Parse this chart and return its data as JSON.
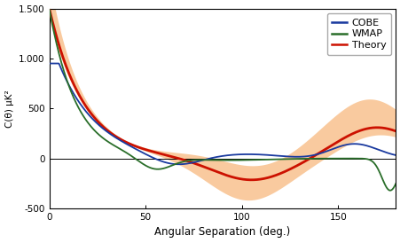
{
  "title": "",
  "xlabel": "Angular Separation (deg.)",
  "ylabel": "C(θ) μK²",
  "xlim": [
    0,
    180
  ],
  "ylim": [
    -500,
    1500
  ],
  "yticks": [
    -500,
    0,
    500,
    1000,
    1500
  ],
  "ytick_labels": [
    "-500",
    "0",
    "500",
    "1.000",
    "1.500"
  ],
  "xticks": [
    0,
    50,
    100,
    150
  ],
  "colors": {
    "cobe": "#1a3a9f",
    "wmap": "#2a6e2a",
    "theory": "#cc1100",
    "band": "#f5a050"
  },
  "legend": {
    "cobe": "COBE",
    "wmap": "WMAP",
    "theory": "Theory"
  }
}
